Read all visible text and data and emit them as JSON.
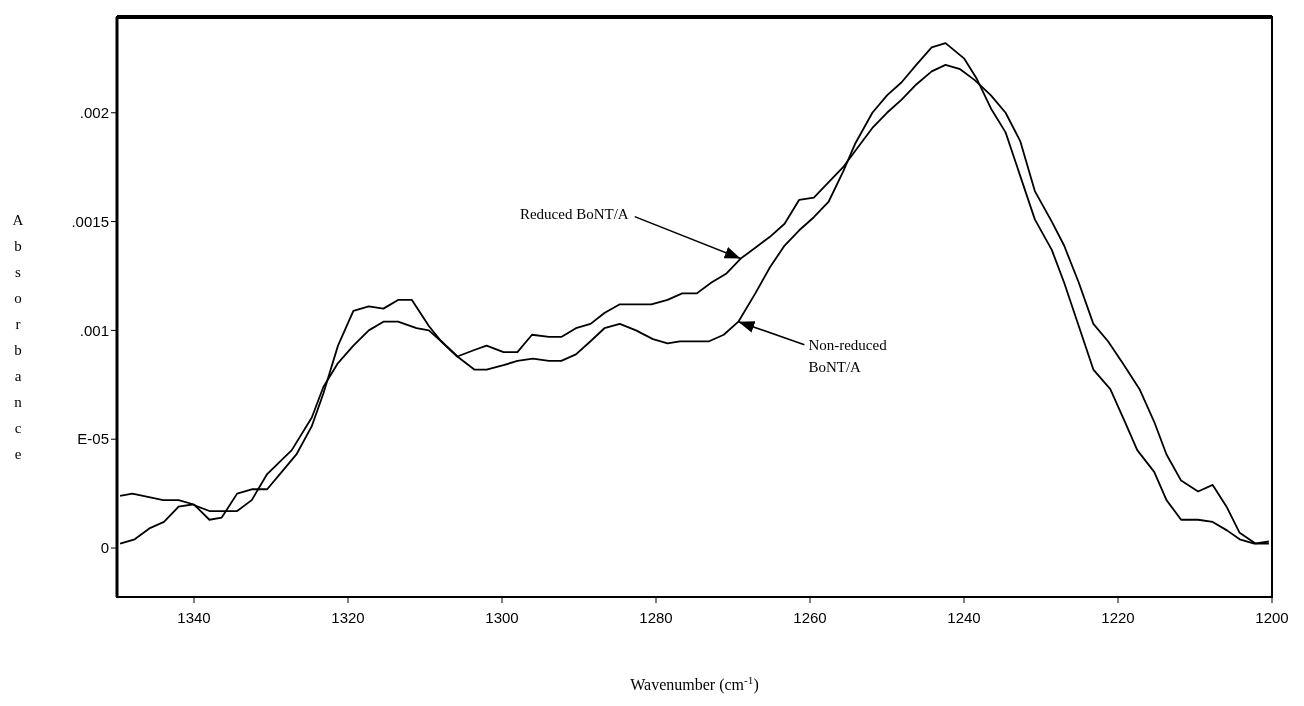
{
  "chart_data": {
    "type": "line",
    "xlabel": "Wavenumber (cm$^{-1}$)",
    "ylabel": "Absorbance",
    "xlim": [
      1350,
      1200
    ],
    "xticks": [
      1340,
      1320,
      1300,
      1280,
      1260,
      1240,
      1220,
      1200
    ],
    "ylim": [
      -0.000225,
      0.00244
    ],
    "yticks": [
      {
        "value": 0.002,
        "label": ".002"
      },
      {
        "value": 0.0015,
        "label": ".0015"
      },
      {
        "value": 0.001,
        "label": ".001"
      },
      {
        "value": 0.0005,
        "label": "E-05"
      },
      0
    ],
    "grid": false,
    "marker": "none",
    "line_style": "solid",
    "annotations": [
      {
        "text": "Reduced BoNT/A",
        "x": 1269,
        "y": 0.00133
      },
      {
        "text": "Non-reduced BoNT/A",
        "x": 1269.3,
        "y": 0.00104
      }
    ],
    "series": [
      {
        "color": "#000000",
        "x": [
          1349.6,
          1347.7,
          1345.8,
          1343.9,
          1342,
          1340.2,
          1338,
          1334.4,
          1332.5,
          1330.5,
          1327.3,
          1324.7,
          1323.2,
          1321.3,
          1319.3,
          1317.3,
          1315.4,
          1313.5,
          1311.1,
          1309.5,
          1307.9,
          1305.8,
          1303.6,
          1302,
          1299.8,
          1298,
          1296.1,
          1293.9,
          1292.3,
          1290.4,
          1288.5,
          1286.7,
          1284.7,
          1280.6,
          1278.5,
          1276.6,
          1274.7,
          1272.8,
          1270.9,
          1269,
          1267.1,
          1265.2,
          1263.3,
          1261.4,
          1259.5,
          1257.6,
          1255.7,
          1253.8,
          1251.9,
          1250,
          1248.1,
          1246.2,
          1244.2,
          1242.4,
          1240.5,
          1238.6,
          1236.5,
          1234.6,
          1232.7,
          1230.8,
          1228.6,
          1227,
          1225.1,
          1223.2,
          1221.3,
          1219.4,
          1217.2,
          1215.3,
          1213.7,
          1211.8,
          1209.6,
          1207.7,
          1205.9,
          1204.2,
          1202.1,
          1200.4
        ],
        "values": [
          2e-05,
          4e-05,
          9e-05,
          0.00012,
          0.00019,
          0.0002,
          0.00017,
          0.00017,
          0.00022,
          0.00034,
          0.00045,
          0.0006,
          0.00074,
          0.00085,
          0.00093,
          0.001,
          0.00104,
          0.00104,
          0.00101,
          0.001,
          0.00095,
          0.00088,
          0.00091,
          0.00093,
          0.0009,
          0.0009,
          0.00098,
          0.00097,
          0.00097,
          0.00101,
          0.00103,
          0.00108,
          0.00112,
          0.00112,
          0.00114,
          0.00117,
          0.00117,
          0.00122,
          0.00126,
          0.00133,
          0.00138,
          0.00143,
          0.00149,
          0.0016,
          0.00161,
          0.00168,
          0.00175,
          0.00184,
          0.00193,
          0.002,
          0.00206,
          0.00213,
          0.00219,
          0.00222,
          0.0022,
          0.00215,
          0.00208,
          0.002,
          0.00187,
          0.00164,
          0.0015,
          0.00139,
          0.00122,
          0.00103,
          0.00095,
          0.00085,
          0.00073,
          0.00058,
          0.00043,
          0.00031,
          0.00026,
          0.00029,
          0.00019,
          7e-05,
          2e-05,
          2e-05
        ]
      },
      {
        "color": "#000000",
        "x": [
          1349.6,
          1348,
          1344,
          1342,
          1340,
          1338,
          1336.4,
          1334.4,
          1332.5,
          1330.5,
          1328.6,
          1326.7,
          1324.7,
          1323.2,
          1321.3,
          1319.3,
          1317.3,
          1315.4,
          1313.5,
          1311.7,
          1309.5,
          1307.9,
          1305.8,
          1303.6,
          1302,
          1299.8,
          1298,
          1296,
          1293.9,
          1292.3,
          1290.4,
          1288.5,
          1286.7,
          1284.7,
          1282.6,
          1280.4,
          1278.5,
          1276.9,
          1273.1,
          1271.2,
          1269.3,
          1267.1,
          1265.2,
          1263.3,
          1261.4,
          1259.5,
          1257.6,
          1255.7,
          1254.1,
          1251.9,
          1250,
          1248.1,
          1246.2,
          1244.2,
          1242.4,
          1240,
          1238.4,
          1236.5,
          1234.6,
          1232.7,
          1230.8,
          1228.6,
          1227,
          1225.1,
          1223.2,
          1221,
          1219.1,
          1217.5,
          1215.3,
          1213.7,
          1211.8,
          1209.6,
          1207.7,
          1205.8,
          1204.2,
          1202.3,
          1200.4
        ],
        "values": [
          0.00024,
          0.00025,
          0.00022,
          0.00022,
          0.0002,
          0.00013,
          0.00014,
          0.00025,
          0.00027,
          0.00027,
          0.00035,
          0.00043,
          0.00056,
          0.00071,
          0.00093,
          0.00109,
          0.00111,
          0.0011,
          0.00114,
          0.00114,
          0.00102,
          0.00095,
          0.00088,
          0.00082,
          0.00082,
          0.00084,
          0.00086,
          0.00087,
          0.00086,
          0.00086,
          0.00089,
          0.00095,
          0.00101,
          0.00103,
          0.001,
          0.00096,
          0.00094,
          0.00095,
          0.00095,
          0.00098,
          0.00104,
          0.00117,
          0.00129,
          0.00139,
          0.00146,
          0.00152,
          0.00159,
          0.00173,
          0.00186,
          0.002,
          0.00208,
          0.00214,
          0.00222,
          0.0023,
          0.00232,
          0.00225,
          0.00216,
          0.00202,
          0.00191,
          0.00171,
          0.00151,
          0.00137,
          0.00122,
          0.00102,
          0.00082,
          0.00073,
          0.00058,
          0.00045,
          0.00035,
          0.00022,
          0.00013,
          0.00013,
          0.00012,
          8e-05,
          4e-05,
          2e-05,
          3e-05
        ]
      }
    ]
  }
}
